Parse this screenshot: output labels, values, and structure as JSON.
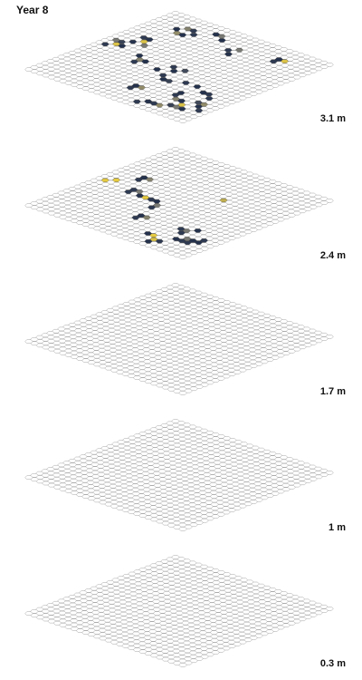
{
  "title": "Year 8",
  "chart_data": {
    "type": "heatmap",
    "grid": {
      "cols": 28,
      "rows": 28,
      "cell": "hexagon"
    },
    "palette": {
      "empty": "#ffffff",
      "outline": "#9a9a9a",
      "low": "#1b2a49",
      "mid": "#7a7a75",
      "high": "#f2d43b"
    },
    "layers": [
      {
        "label": "3.1 m",
        "cells": [
          [
            4,
            4,
            0.05
          ],
          [
            5,
            3,
            0.55
          ],
          [
            6,
            3,
            0.1
          ],
          [
            5,
            5,
            0.6
          ],
          [
            6,
            5,
            0.05
          ],
          [
            7,
            4,
            0.1
          ],
          [
            9,
            2,
            0.05
          ],
          [
            10,
            2,
            0.5
          ],
          [
            11,
            3,
            0.05
          ],
          [
            14,
            5,
            0.1
          ],
          [
            15,
            4,
            0.5
          ],
          [
            15,
            6,
            0.05
          ],
          [
            21,
            3,
            0.05
          ],
          [
            22,
            3,
            0.9
          ],
          [
            21,
            4,
            0.1
          ],
          [
            3,
            9,
            0.1
          ],
          [
            4,
            9,
            0.05
          ],
          [
            4,
            10,
            0.9
          ],
          [
            3,
            11,
            0.05
          ],
          [
            5,
            11,
            0.5
          ],
          [
            2,
            12,
            0.15
          ],
          [
            1,
            12,
            0.5
          ],
          [
            2,
            13,
            0.9
          ],
          [
            3,
            13,
            0.05
          ],
          [
            1,
            14,
            0.1
          ],
          [
            7,
            14,
            0.05
          ],
          [
            8,
            15,
            0.55
          ],
          [
            9,
            15,
            0.05
          ],
          [
            8,
            16,
            0.1
          ],
          [
            13,
            14,
            0.1
          ],
          [
            14,
            15,
            0.05
          ],
          [
            15,
            14,
            0.2
          ],
          [
            12,
            16,
            0.05
          ],
          [
            14,
            17,
            0.1
          ],
          [
            15,
            18,
            0.05
          ],
          [
            16,
            18,
            0.15
          ],
          [
            18,
            17,
            0.1
          ],
          [
            14,
            22,
            0.05
          ],
          [
            15,
            22,
            0.6
          ],
          [
            14,
            23,
            0.1
          ],
          [
            20,
            20,
            0.05
          ],
          [
            20,
            21,
            0.1
          ],
          [
            21,
            22,
            0.55
          ],
          [
            22,
            22,
            0.05
          ],
          [
            22,
            24,
            0.15
          ],
          [
            23,
            24,
            0.5
          ],
          [
            24,
            24,
            0.05
          ],
          [
            23,
            23,
            0.9
          ],
          [
            24,
            21,
            0.2
          ],
          [
            25,
            21,
            0.6
          ],
          [
            25,
            22,
            0.05
          ],
          [
            26,
            23,
            0.1
          ],
          [
            19,
            25,
            0.05
          ],
          [
            20,
            25,
            0.1
          ],
          [
            18,
            26,
            0.1
          ],
          [
            21,
            25,
            0.6
          ],
          [
            22,
            18,
            0.05
          ],
          [
            23,
            18,
            0.1
          ],
          [
            20,
            17,
            0.05
          ],
          [
            24,
            19,
            0.1
          ]
        ]
      },
      {
        "label": "2.4 m",
        "cells": [
          [
            17,
            9,
            0.8
          ],
          [
            4,
            10,
            0.05
          ],
          [
            5,
            10,
            0.55
          ],
          [
            4,
            11,
            0.1
          ],
          [
            2,
            13,
            0.95
          ],
          [
            1,
            14,
            0.95
          ],
          [
            6,
            14,
            0.1
          ],
          [
            7,
            14,
            0.5
          ],
          [
            6,
            15,
            0.1
          ],
          [
            8,
            15,
            0.05
          ],
          [
            9,
            15,
            0.95
          ],
          [
            10,
            15,
            0.1
          ],
          [
            11,
            15,
            0.05
          ],
          [
            12,
            16,
            0.5
          ],
          [
            12,
            17,
            0.1
          ],
          [
            13,
            20,
            0.05
          ],
          [
            14,
            20,
            0.55
          ],
          [
            13,
            21,
            0.1
          ],
          [
            20,
            20,
            0.1
          ],
          [
            21,
            20,
            0.5
          ],
          [
            21,
            21,
            0.1
          ],
          [
            22,
            19,
            0.05
          ],
          [
            18,
            24,
            0.05
          ],
          [
            19,
            24,
            0.95
          ],
          [
            20,
            25,
            0.9
          ],
          [
            21,
            25,
            0.1
          ],
          [
            20,
            26,
            0.05
          ],
          [
            23,
            23,
            0.1
          ],
          [
            24,
            22,
            0.05
          ],
          [
            23,
            22,
            0.5
          ],
          [
            24,
            23,
            0.1
          ],
          [
            22,
            23,
            0.05
          ],
          [
            25,
            21,
            0.1
          ],
          [
            25,
            22,
            0.05
          ]
        ]
      },
      {
        "label": "1.7 m",
        "cells": []
      },
      {
        "label": "1 m",
        "cells": []
      },
      {
        "label": "0.3 m",
        "cells": []
      }
    ]
  }
}
